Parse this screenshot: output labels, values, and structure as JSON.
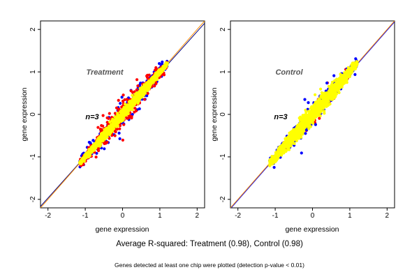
{
  "figure": {
    "caption": "Average R-squared: Treatment (0.98), Control (0.98)",
    "footnote": "Genes detected at least one chip were plotted (detection p-value < 0.01)"
  },
  "colors": {
    "red": "#ff0000",
    "blue": "#0000ff",
    "yellow": "#ffff00",
    "orange_line": "#ff8c00",
    "navy_line": "#000080"
  },
  "chart_data": [
    {
      "type": "scatter",
      "panel": "Treatment",
      "title": "Treatment",
      "annotation": "n=3",
      "xlabel": "gene expression",
      "ylabel": "gene expression",
      "xlim": [
        -2.2,
        2.2
      ],
      "ylim": [
        -2.2,
        2.2
      ],
      "xticks": [
        "-2",
        "-1",
        "0",
        "1",
        "2"
      ],
      "yticks": [
        "-2",
        "-1",
        "0",
        "1",
        "2"
      ],
      "reference_lines": [
        {
          "color": "#000080",
          "slope": 0.98,
          "intercept": -0.01
        },
        {
          "color": "#ff8c00",
          "slope": 1.0,
          "intercept": 0.0
        }
      ],
      "cloud": {
        "x_range": [
          -1.15,
          1.2
        ],
        "spread": [
          0.06,
          0.12,
          0.22,
          0.1
        ]
      },
      "series": [
        {
          "color": "#0000ff",
          "role": "blue points",
          "count": 260,
          "spread_scale": 1.15
        },
        {
          "color": "#ff0000",
          "role": "red points",
          "count": 520,
          "spread_scale": 1.0
        },
        {
          "color": "#ffff00",
          "role": "yellow points",
          "count": 1300,
          "spread_scale": 0.55
        }
      ]
    },
    {
      "type": "scatter",
      "panel": "Control",
      "title": "Control",
      "annotation": "n=3",
      "xlabel": "gene expression",
      "ylabel": "gene expression",
      "xlim": [
        -2.2,
        2.2
      ],
      "ylim": [
        -2.2,
        2.2
      ],
      "xticks": [
        "-2",
        "-1",
        "0",
        "1",
        "2"
      ],
      "yticks": [
        "-2",
        "-1",
        "0",
        "1",
        "2"
      ],
      "reference_lines": [
        {
          "color": "#0000ff",
          "slope": 1.0,
          "intercept": -0.02
        },
        {
          "color": "#ff8c00",
          "slope": 1.0,
          "intercept": 0.0
        }
      ],
      "cloud": {
        "x_range": [
          -1.15,
          1.2
        ],
        "spread": [
          0.06,
          0.12,
          0.2,
          0.1
        ]
      },
      "series": [
        {
          "color": "#ff0000",
          "role": "red points",
          "count": 120,
          "spread_scale": 0.8
        },
        {
          "color": "#0000ff",
          "role": "blue points",
          "count": 300,
          "spread_scale": 1.05
        },
        {
          "color": "#ffff00",
          "role": "yellow points",
          "count": 1500,
          "spread_scale": 0.95
        }
      ]
    }
  ]
}
